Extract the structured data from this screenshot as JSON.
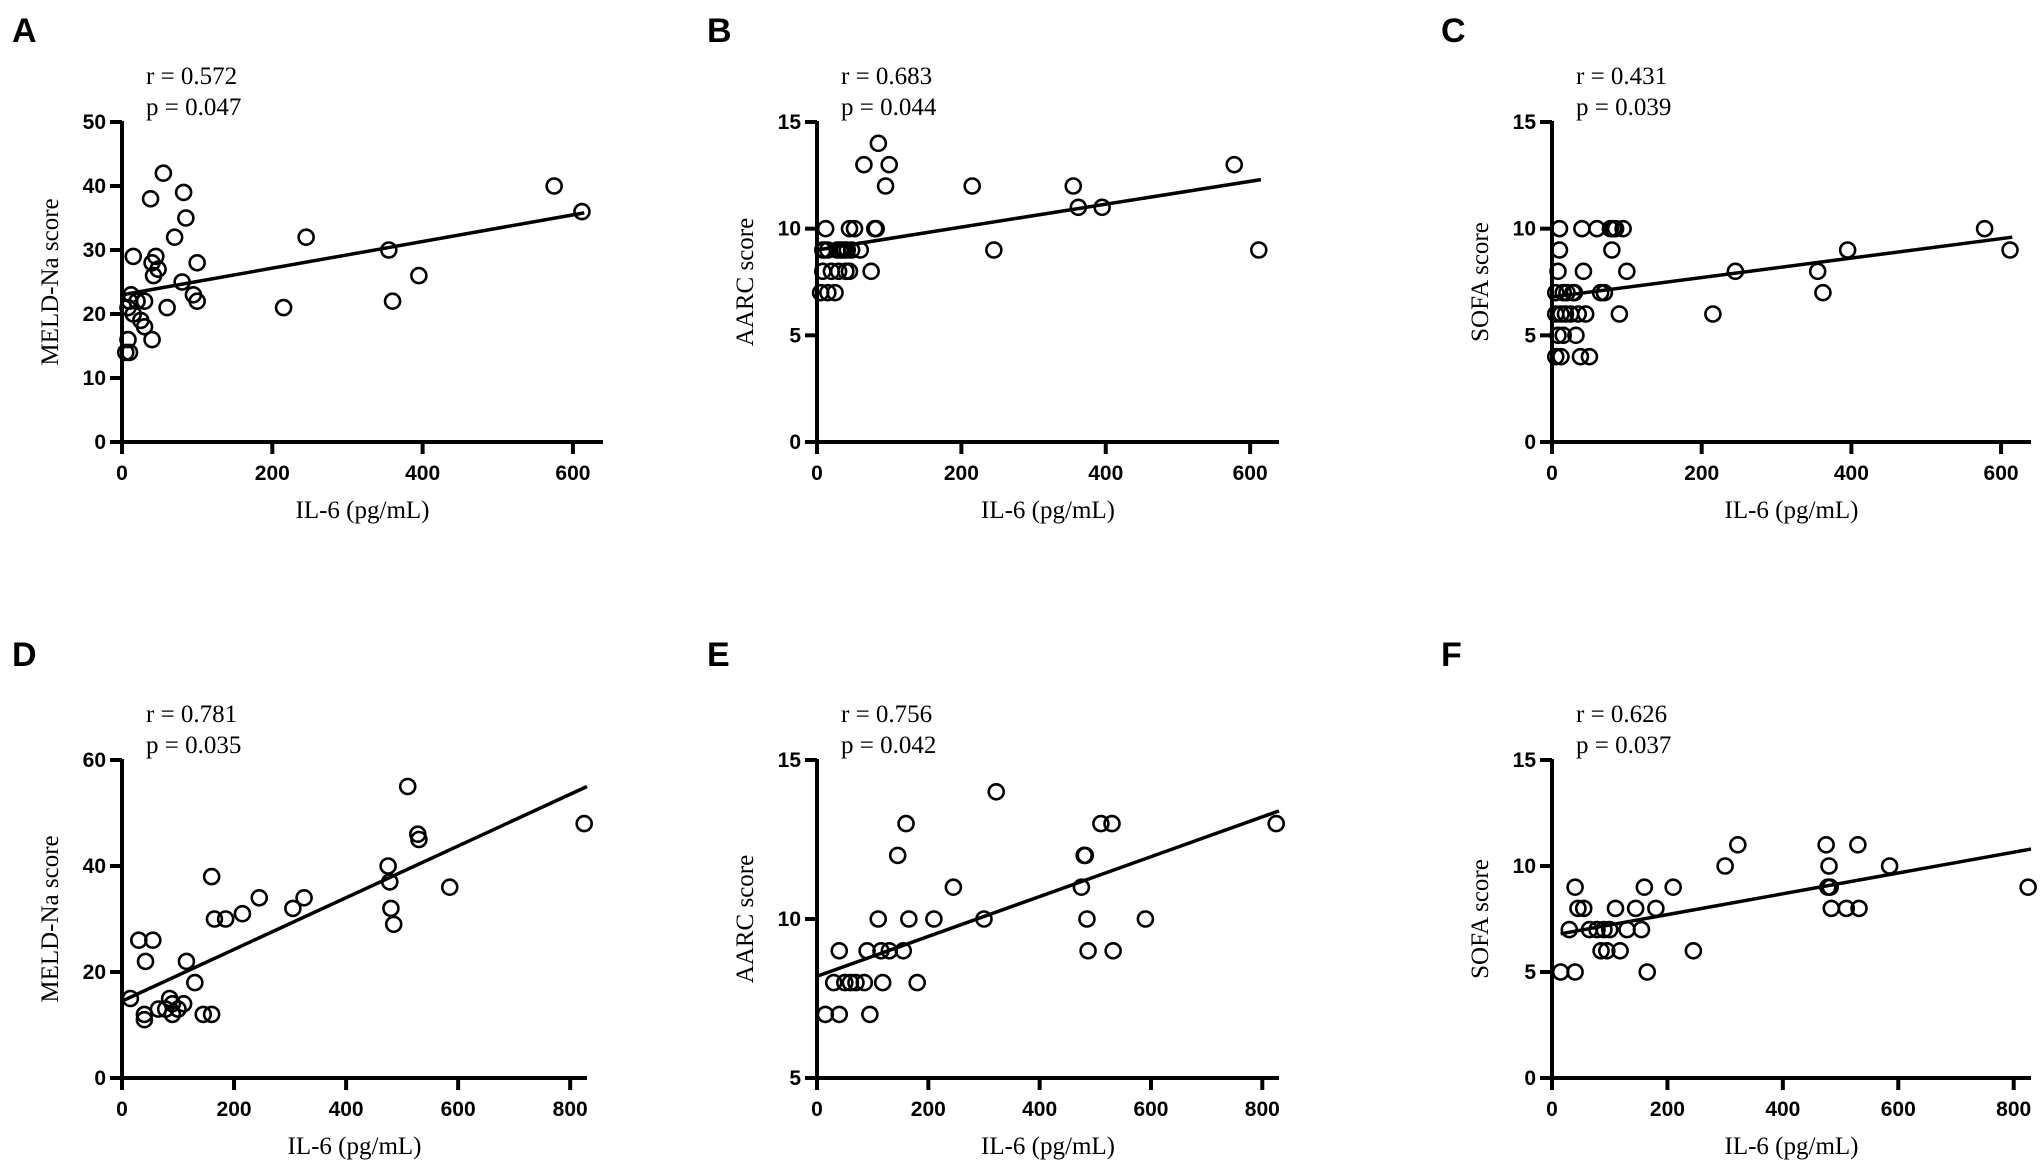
{
  "chart_data": [
    {
      "type": "scatter",
      "panel": "A",
      "stats": {
        "r": "r =  0.572",
        "p": "p = 0.047"
      },
      "xlabel": "IL-6 (pg/mL)",
      "ylabel": "MELD-Na score",
      "xlim": [
        0,
        640
      ],
      "ylim": [
        0,
        50
      ],
      "xticks": [
        0,
        200,
        400,
        600
      ],
      "yticks": [
        0,
        10,
        20,
        30,
        40,
        50
      ],
      "points": [
        [
          5,
          14
        ],
        [
          8,
          16
        ],
        [
          10,
          22
        ],
        [
          8,
          21
        ],
        [
          12,
          23
        ],
        [
          10,
          14
        ],
        [
          15,
          20
        ],
        [
          15,
          29
        ],
        [
          20,
          22
        ],
        [
          25,
          19
        ],
        [
          30,
          22
        ],
        [
          30,
          18
        ],
        [
          38,
          38
        ],
        [
          40,
          16
        ],
        [
          40,
          28
        ],
        [
          42,
          26
        ],
        [
          45,
          29
        ],
        [
          48,
          27
        ],
        [
          55,
          42
        ],
        [
          60,
          21
        ],
        [
          70,
          32
        ],
        [
          80,
          25
        ],
        [
          82,
          39
        ],
        [
          85,
          35
        ],
        [
          95,
          23
        ],
        [
          100,
          28
        ],
        [
          100,
          22
        ],
        [
          215,
          21
        ],
        [
          245,
          32
        ],
        [
          355,
          30
        ],
        [
          360,
          22
        ],
        [
          395,
          26
        ],
        [
          575,
          40
        ],
        [
          612,
          36
        ]
      ],
      "fit": {
        "x": [
          0,
          615
        ],
        "y": [
          23.0,
          35.8
        ]
      }
    },
    {
      "type": "scatter",
      "panel": "B",
      "stats": {
        "r": "r =  0.683",
        "p": "p = 0.044"
      },
      "xlabel": "IL-6 (pg/mL)",
      "ylabel": "AARC score",
      "xlim": [
        0,
        640
      ],
      "ylim": [
        0,
        15
      ],
      "xticks": [
        0,
        200,
        400,
        600
      ],
      "yticks": [
        0,
        5,
        10,
        15
      ],
      "points": [
        [
          5,
          7
        ],
        [
          8,
          8
        ],
        [
          8,
          9
        ],
        [
          10,
          9
        ],
        [
          12,
          10
        ],
        [
          15,
          7
        ],
        [
          15,
          9
        ],
        [
          20,
          8
        ],
        [
          25,
          7
        ],
        [
          28,
          9
        ],
        [
          30,
          8
        ],
        [
          32,
          9
        ],
        [
          35,
          9
        ],
        [
          38,
          9
        ],
        [
          40,
          8
        ],
        [
          42,
          9
        ],
        [
          45,
          10
        ],
        [
          45,
          8
        ],
        [
          48,
          9
        ],
        [
          52,
          10
        ],
        [
          60,
          9
        ],
        [
          65,
          13
        ],
        [
          75,
          8
        ],
        [
          80,
          10
        ],
        [
          82,
          10
        ],
        [
          85,
          14
        ],
        [
          95,
          12
        ],
        [
          100,
          13
        ],
        [
          215,
          12
        ],
        [
          245,
          9
        ],
        [
          355,
          12
        ],
        [
          362,
          11
        ],
        [
          395,
          11
        ],
        [
          578,
          13
        ],
        [
          612,
          9
        ]
      ],
      "fit": {
        "x": [
          0,
          615
        ],
        "y": [
          9.0,
          12.3
        ]
      }
    },
    {
      "type": "scatter",
      "panel": "C",
      "stats": {
        "r": "r =  0.431",
        "p": "p = 0.039"
      },
      "xlabel": "IL-6 (pg/mL)",
      "ylabel": "SOFA score",
      "xlim": [
        0,
        640
      ],
      "ylim": [
        0,
        15
      ],
      "xticks": [
        0,
        200,
        400,
        600
      ],
      "yticks": [
        0,
        5,
        10,
        15
      ],
      "points": [
        [
          5,
          4
        ],
        [
          5,
          6
        ],
        [
          5,
          7
        ],
        [
          8,
          5
        ],
        [
          8,
          8
        ],
        [
          10,
          9
        ],
        [
          10,
          10
        ],
        [
          12,
          6
        ],
        [
          12,
          4
        ],
        [
          15,
          7
        ],
        [
          15,
          5
        ],
        [
          18,
          6
        ],
        [
          20,
          7
        ],
        [
          25,
          6
        ],
        [
          28,
          7
        ],
        [
          30,
          7
        ],
        [
          32,
          5
        ],
        [
          35,
          6
        ],
        [
          38,
          4
        ],
        [
          40,
          10
        ],
        [
          42,
          8
        ],
        [
          45,
          6
        ],
        [
          50,
          4
        ],
        [
          60,
          10
        ],
        [
          65,
          7
        ],
        [
          70,
          7
        ],
        [
          78,
          10
        ],
        [
          80,
          9
        ],
        [
          82,
          10
        ],
        [
          85,
          10
        ],
        [
          90,
          6
        ],
        [
          95,
          10
        ],
        [
          100,
          8
        ],
        [
          215,
          6
        ],
        [
          245,
          8
        ],
        [
          355,
          8
        ],
        [
          362,
          7
        ],
        [
          395,
          9
        ],
        [
          578,
          10
        ],
        [
          612,
          9
        ]
      ],
      "fit": {
        "x": [
          0,
          615
        ],
        "y": [
          6.8,
          9.6
        ]
      }
    },
    {
      "type": "scatter",
      "panel": "D",
      "stats": {
        "r": "r =  0.781",
        "p": "p = 0.035"
      },
      "xlabel": "IL-6 (pg/mL)",
      "ylabel": "MELD-Na score",
      "xlim": [
        0,
        830
      ],
      "ylim": [
        0,
        60
      ],
      "xticks": [
        0,
        200,
        400,
        600,
        800
      ],
      "yticks": [
        0,
        20,
        40,
        60
      ],
      "points": [
        [
          15,
          15
        ],
        [
          30,
          26
        ],
        [
          40,
          12
        ],
        [
          40,
          11
        ],
        [
          42,
          22
        ],
        [
          55,
          26
        ],
        [
          65,
          13
        ],
        [
          78,
          13
        ],
        [
          85,
          15
        ],
        [
          90,
          12
        ],
        [
          90,
          14
        ],
        [
          100,
          13
        ],
        [
          110,
          14
        ],
        [
          115,
          22
        ],
        [
          130,
          18
        ],
        [
          145,
          12
        ],
        [
          160,
          38
        ],
        [
          160,
          12
        ],
        [
          165,
          30
        ],
        [
          185,
          30
        ],
        [
          215,
          31
        ],
        [
          245,
          34
        ],
        [
          305,
          32
        ],
        [
          325,
          34
        ],
        [
          475,
          40
        ],
        [
          478,
          37
        ],
        [
          480,
          32
        ],
        [
          485,
          29
        ],
        [
          510,
          55
        ],
        [
          528,
          46
        ],
        [
          530,
          45
        ],
        [
          585,
          36
        ],
        [
          825,
          48
        ]
      ],
      "fit": {
        "x": [
          0,
          830
        ],
        "y": [
          14.5,
          55.0
        ]
      }
    },
    {
      "type": "scatter",
      "panel": "E",
      "stats": {
        "r": "r =  0.756",
        "p": "p = 0.042"
      },
      "xlabel": "IL-6 (pg/mL)",
      "ylabel": "AARC score",
      "xlim": [
        0,
        830
      ],
      "ylim": [
        5,
        15
      ],
      "xticks": [
        0,
        200,
        400,
        600,
        800
      ],
      "yticks": [
        5,
        10,
        15
      ],
      "points": [
        [
          15,
          7
        ],
        [
          30,
          8
        ],
        [
          40,
          9
        ],
        [
          40,
          7
        ],
        [
          50,
          8
        ],
        [
          60,
          8
        ],
        [
          70,
          8
        ],
        [
          85,
          8
        ],
        [
          90,
          9
        ],
        [
          95,
          7
        ],
        [
          110,
          10
        ],
        [
          115,
          9
        ],
        [
          118,
          8
        ],
        [
          130,
          9
        ],
        [
          145,
          12
        ],
        [
          155,
          9
        ],
        [
          160,
          13
        ],
        [
          165,
          10
        ],
        [
          180,
          8
        ],
        [
          210,
          10
        ],
        [
          245,
          11
        ],
        [
          300,
          10
        ],
        [
          322,
          14
        ],
        [
          475,
          11
        ],
        [
          480,
          12
        ],
        [
          482,
          12
        ],
        [
          485,
          10
        ],
        [
          487,
          9
        ],
        [
          510,
          13
        ],
        [
          530,
          13
        ],
        [
          532,
          9
        ],
        [
          590,
          10
        ],
        [
          825,
          13
        ]
      ],
      "fit": {
        "x": [
          0,
          830
        ],
        "y": [
          8.2,
          13.4
        ]
      }
    },
    {
      "type": "scatter",
      "panel": "F",
      "stats": {
        "r": "r =  0.626",
        "p": "p = 0.037"
      },
      "xlabel": "IL-6 (pg/mL)",
      "ylabel": "SOFA score",
      "xlim": [
        0,
        830
      ],
      "ylim": [
        0,
        15
      ],
      "xticks": [
        0,
        200,
        400,
        600,
        800
      ],
      "yticks": [
        0,
        5,
        10,
        15
      ],
      "points": [
        [
          15,
          5
        ],
        [
          30,
          7
        ],
        [
          40,
          9
        ],
        [
          40,
          5
        ],
        [
          45,
          8
        ],
        [
          55,
          8
        ],
        [
          65,
          7
        ],
        [
          78,
          7
        ],
        [
          85,
          6
        ],
        [
          90,
          7
        ],
        [
          95,
          6
        ],
        [
          100,
          7
        ],
        [
          110,
          8
        ],
        [
          118,
          6
        ],
        [
          130,
          7
        ],
        [
          145,
          8
        ],
        [
          155,
          7
        ],
        [
          160,
          9
        ],
        [
          165,
          5
        ],
        [
          180,
          8
        ],
        [
          210,
          9
        ],
        [
          245,
          6
        ],
        [
          300,
          10
        ],
        [
          322,
          11
        ],
        [
          475,
          11
        ],
        [
          478,
          9
        ],
        [
          480,
          10
        ],
        [
          482,
          9
        ],
        [
          484,
          8
        ],
        [
          510,
          8
        ],
        [
          530,
          11
        ],
        [
          532,
          8
        ],
        [
          585,
          10
        ],
        [
          825,
          9
        ]
      ],
      "fit": {
        "x": [
          15,
          830
        ],
        "y": [
          6.8,
          10.8
        ]
      }
    }
  ]
}
